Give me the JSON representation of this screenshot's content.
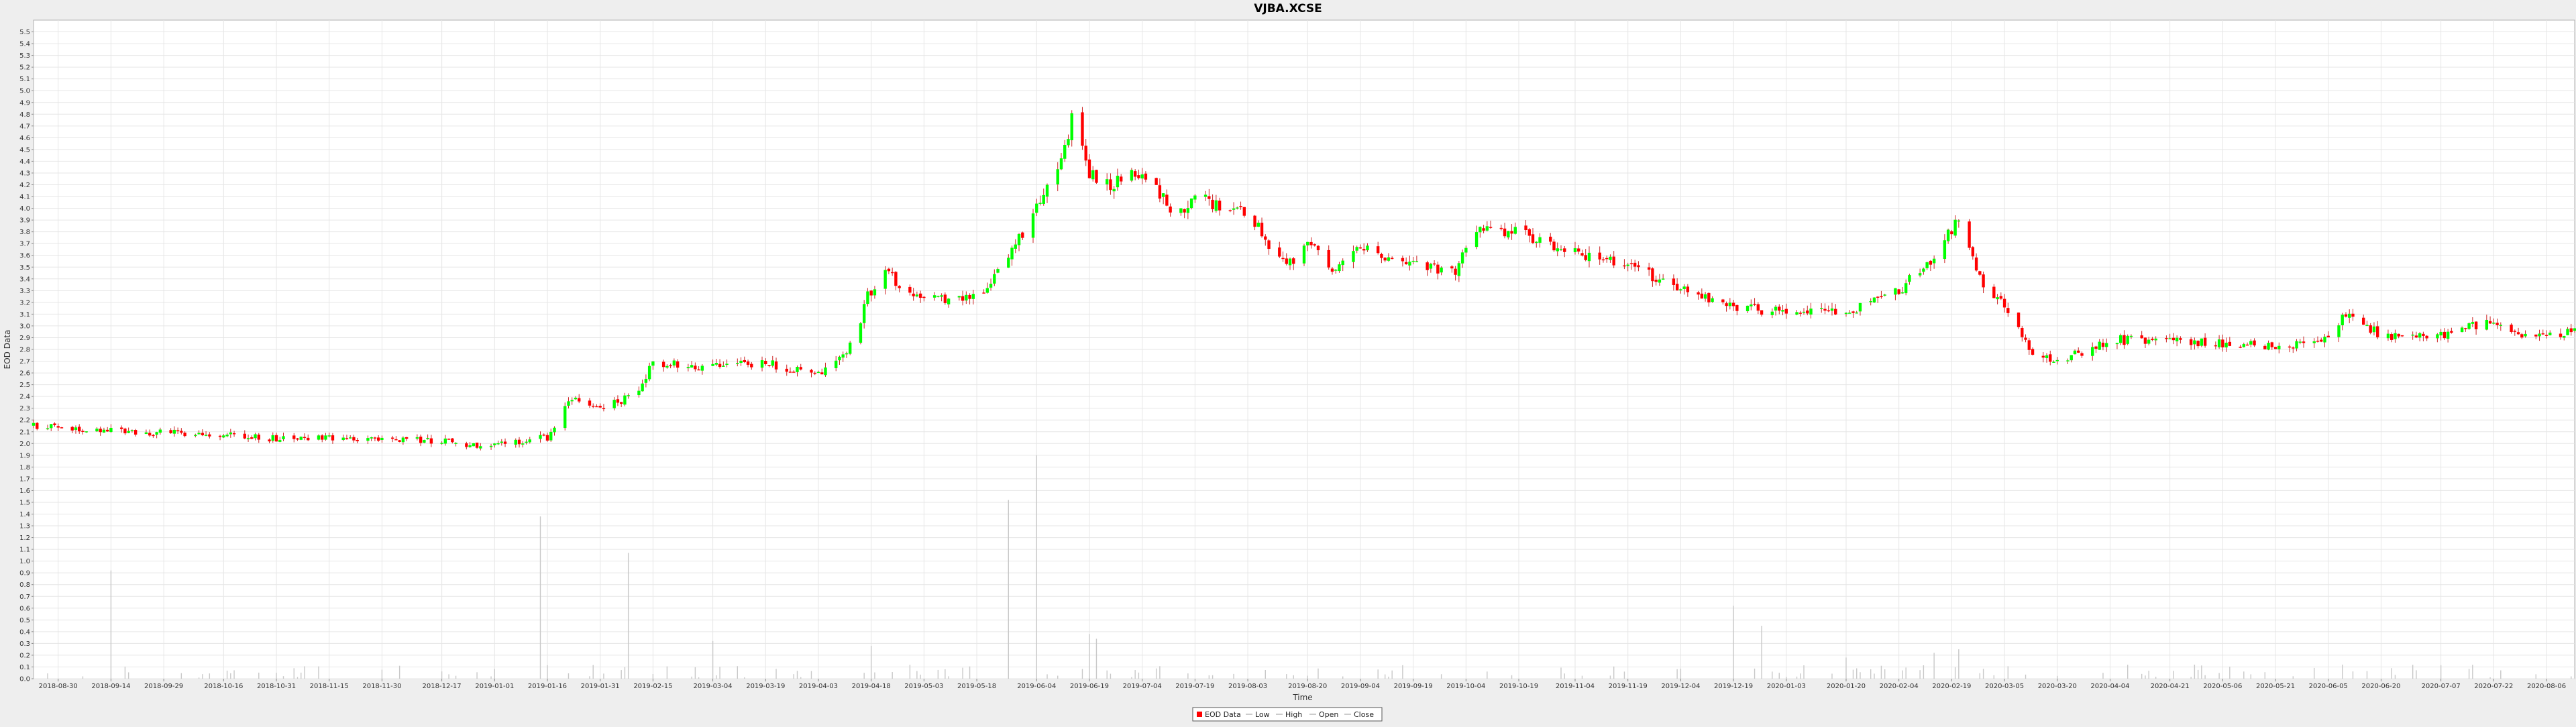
{
  "chart_data": {
    "type": "candlestick",
    "title": "VJBA.XCSE",
    "xlabel": "Time",
    "ylabel": "EOD Data",
    "ylim": [
      0.0,
      5.6
    ],
    "y_ticks": [
      "0.0",
      "0.1",
      "0.2",
      "0.3",
      "0.4",
      "0.5",
      "0.6",
      "0.7",
      "0.8",
      "0.9",
      "1.0",
      "1.1",
      "1.2",
      "1.3",
      "1.4",
      "1.5",
      "1.6",
      "1.7",
      "1.8",
      "1.9",
      "2.0",
      "2.1",
      "2.2",
      "2.3",
      "2.4",
      "2.5",
      "2.6",
      "2.7",
      "2.8",
      "2.9",
      "3.0",
      "3.1",
      "3.2",
      "3.3",
      "3.4",
      "3.5",
      "3.6",
      "3.7",
      "3.8",
      "3.9",
      "4.0",
      "4.1",
      "4.2",
      "4.3",
      "4.4",
      "4.5",
      "4.6",
      "4.7",
      "4.8",
      "4.9",
      "5.0",
      "5.1",
      "5.2",
      "5.3",
      "5.4",
      "5.5"
    ],
    "x_range": [
      "2018-08-23",
      "2020-08-14"
    ],
    "x_ticks": [
      "2018-08-30",
      "2018-09-14",
      "2018-09-29",
      "2018-10-16",
      "2018-10-31",
      "2018-11-15",
      "2018-11-30",
      "2018-12-17",
      "2019-01-01",
      "2019-01-16",
      "2019-01-31",
      "2019-02-15",
      "2019-03-04",
      "2019-03-19",
      "2019-04-03",
      "2019-04-18",
      "2019-05-03",
      "2019-05-18",
      "2019-06-04",
      "2019-06-19",
      "2019-07-04",
      "2019-07-19",
      "2019-08-03",
      "2019-08-20",
      "2019-09-04",
      "2019-09-19",
      "2019-10-04",
      "2019-10-19",
      "2019-11-04",
      "2019-11-19",
      "2019-12-04",
      "2019-12-19",
      "2020-01-03",
      "2020-01-20",
      "2020-02-04",
      "2020-02-19",
      "2020-03-05",
      "2020-03-20",
      "2020-04-04",
      "2020-04-21",
      "2020-05-06",
      "2020-05-21",
      "2020-06-05",
      "2020-06-20",
      "2020-07-07",
      "2020-07-22",
      "2020-08-06"
    ],
    "grid": true,
    "legend_position": "bottom",
    "legend": [
      "EOD Data",
      "Low",
      "High",
      "Open",
      "Close"
    ],
    "colors": {
      "up": "#00ff00",
      "down": "#ff0000",
      "wick": "#cc2222",
      "volume": "#c8c8c8",
      "grid": "#e6e6e6"
    },
    "price_anchors": [
      [
        "2018-08-23",
        2.15
      ],
      [
        "2018-09-05",
        2.12
      ],
      [
        "2018-09-20",
        2.1
      ],
      [
        "2018-10-16",
        2.07
      ],
      [
        "2018-10-31",
        2.04
      ],
      [
        "2018-11-15",
        2.05
      ],
      [
        "2018-11-30",
        2.04
      ],
      [
        "2018-12-17",
        2.02
      ],
      [
        "2018-12-24",
        1.98
      ],
      [
        "2019-01-01",
        2.0
      ],
      [
        "2019-01-16",
        2.05
      ],
      [
        "2019-01-22",
        2.38
      ],
      [
        "2019-01-31",
        2.32
      ],
      [
        "2019-02-10",
        2.4
      ],
      [
        "2019-02-15",
        2.68
      ],
      [
        "2019-03-04",
        2.66
      ],
      [
        "2019-03-19",
        2.68
      ],
      [
        "2019-04-03",
        2.6
      ],
      [
        "2019-04-13",
        2.85
      ],
      [
        "2019-04-17",
        3.25
      ],
      [
        "2019-04-22",
        3.45
      ],
      [
        "2019-05-03",
        3.22
      ],
      [
        "2019-05-18",
        3.25
      ],
      [
        "2019-05-27",
        3.6
      ],
      [
        "2019-06-04",
        4.0
      ],
      [
        "2019-06-10",
        4.3
      ],
      [
        "2019-06-15",
        4.85
      ],
      [
        "2019-06-19",
        4.3
      ],
      [
        "2019-06-25",
        4.2
      ],
      [
        "2019-07-04",
        4.3
      ],
      [
        "2019-07-14",
        3.95
      ],
      [
        "2019-07-19",
        4.1
      ],
      [
        "2019-08-03",
        3.95
      ],
      [
        "2019-08-14",
        3.5
      ],
      [
        "2019-08-20",
        3.7
      ],
      [
        "2019-08-28",
        3.45
      ],
      [
        "2019-09-04",
        3.65
      ],
      [
        "2019-09-19",
        3.55
      ],
      [
        "2019-10-01",
        3.45
      ],
      [
        "2019-10-06",
        3.8
      ],
      [
        "2019-10-19",
        3.8
      ],
      [
        "2019-11-04",
        3.62
      ],
      [
        "2019-11-19",
        3.52
      ],
      [
        "2019-12-04",
        3.3
      ],
      [
        "2019-12-19",
        3.15
      ],
      [
        "2020-01-03",
        3.12
      ],
      [
        "2020-01-20",
        3.12
      ],
      [
        "2020-02-04",
        3.3
      ],
      [
        "2020-02-14",
        3.6
      ],
      [
        "2020-02-21",
        3.92
      ],
      [
        "2020-02-27",
        3.4
      ],
      [
        "2020-03-05",
        3.15
      ],
      [
        "2020-03-12",
        2.8
      ],
      [
        "2020-03-20",
        2.7
      ],
      [
        "2020-04-04",
        2.88
      ],
      [
        "2020-04-21",
        2.88
      ],
      [
        "2020-05-06",
        2.85
      ],
      [
        "2020-05-21",
        2.82
      ],
      [
        "2020-06-05",
        2.88
      ],
      [
        "2020-06-10",
        3.1
      ],
      [
        "2020-06-20",
        2.92
      ],
      [
        "2020-07-07",
        2.92
      ],
      [
        "2020-07-22",
        3.05
      ],
      [
        "2020-07-28",
        2.95
      ],
      [
        "2020-08-06",
        2.9
      ],
      [
        "2020-08-14",
        2.97
      ]
    ],
    "volume_spikes": [
      [
        "2018-09-14",
        0.92
      ],
      [
        "2019-01-14",
        1.38
      ],
      [
        "2019-02-08",
        1.07
      ],
      [
        "2019-03-04",
        0.32
      ],
      [
        "2019-04-18",
        0.28
      ],
      [
        "2019-05-27",
        1.52
      ],
      [
        "2019-06-04",
        1.9
      ],
      [
        "2019-06-19",
        0.38
      ],
      [
        "2019-06-21",
        0.34
      ],
      [
        "2019-12-19",
        0.62
      ],
      [
        "2019-12-27",
        0.45
      ],
      [
        "2020-01-20",
        0.18
      ],
      [
        "2020-02-14",
        0.22
      ],
      [
        "2020-02-21",
        0.25
      ]
    ]
  }
}
